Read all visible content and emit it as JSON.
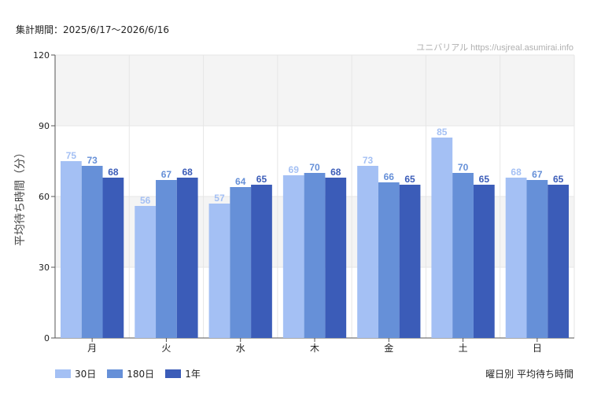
{
  "header": {
    "period": "集計期間：2025/6/17〜2026/6/16",
    "source": "ユニバリアル https://usjreal.asumirai.info"
  },
  "footer": {
    "caption": "曜日別 平均待ち時間"
  },
  "colors": {
    "series": [
      "#a4c0f4",
      "#6690d8",
      "#3b5cb8"
    ],
    "band": "#f4f4f4",
    "grid": "#e6e6e6"
  },
  "chart_data": {
    "type": "bar",
    "ylabel": "平均待ち時間（分）",
    "ylim": [
      0,
      120
    ],
    "yticks": [
      0,
      30,
      60,
      90,
      120
    ],
    "categories": [
      "月",
      "火",
      "水",
      "木",
      "金",
      "土",
      "日"
    ],
    "series": [
      {
        "name": "30日",
        "values": [
          75,
          56,
          57,
          69,
          73,
          85,
          68
        ]
      },
      {
        "name": "180日",
        "values": [
          73,
          67,
          64,
          70,
          66,
          70,
          67
        ]
      },
      {
        "name": "1年",
        "values": [
          68,
          68,
          65,
          68,
          65,
          65,
          65
        ]
      }
    ],
    "grid": true,
    "legend": "bottom-left"
  }
}
